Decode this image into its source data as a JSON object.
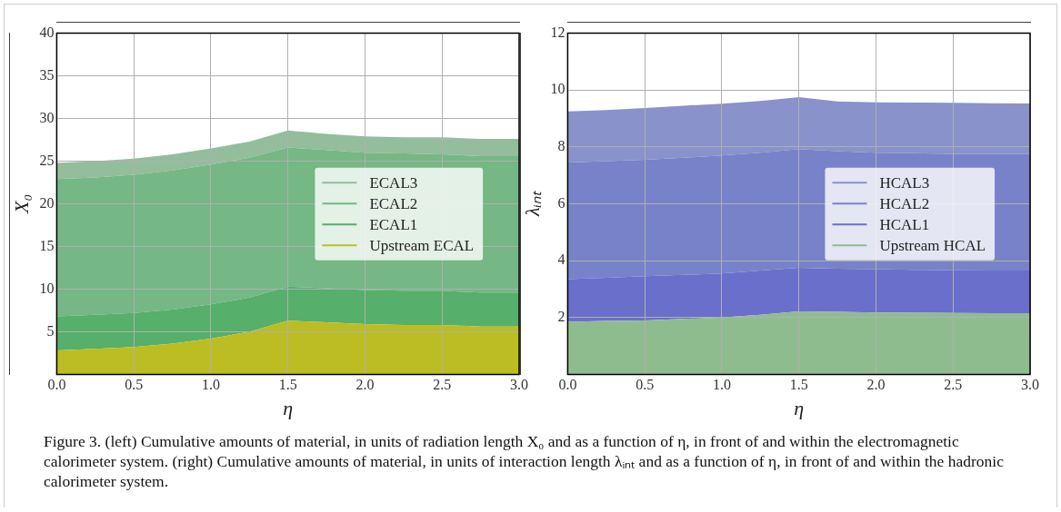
{
  "chart_data": [
    {
      "type": "area",
      "stacked": true,
      "ylabel": "X₀",
      "xlabel": "η",
      "xlim": [
        0,
        3
      ],
      "xticks": [
        {
          "value": 0,
          "label": "0.0"
        },
        {
          "value": 0.5,
          "label": "0.5"
        },
        {
          "value": 1,
          "label": "1.0"
        },
        {
          "value": 1.5,
          "label": "1.5"
        },
        {
          "value": 2,
          "label": "2.0"
        },
        {
          "value": 2.5,
          "label": "2.5"
        },
        {
          "value": 3,
          "label": "3.0"
        }
      ],
      "ylim": [
        0,
        40
      ],
      "yticks": [
        5,
        10,
        15,
        20,
        25,
        30,
        35,
        40
      ],
      "grid": true,
      "legend": "right",
      "marker": "none",
      "x": [
        0,
        0.25,
        0.5,
        0.75,
        1,
        1.25,
        1.5,
        1.75,
        2,
        2.25,
        2.5,
        2.75,
        3
      ],
      "series": [
        {
          "name": "Upstream ECAL",
          "color": "#bcbd22",
          "values": [
            2.8,
            3.0,
            3.2,
            3.6,
            4.2,
            5.0,
            6.3,
            6.1,
            5.9,
            5.8,
            5.8,
            5.6,
            5.6
          ]
        },
        {
          "name": "ECAL1",
          "color": "#56af6a",
          "values": [
            4.0,
            4.0,
            4.0,
            4.0,
            4.0,
            4.0,
            4.0,
            4.0,
            4.0,
            4.0,
            4.0,
            4.0,
            4.0
          ]
        },
        {
          "name": "ECAL2",
          "color": "#75b785",
          "values": [
            16.1,
            16.1,
            16.2,
            16.3,
            16.4,
            16.4,
            16.3,
            16.2,
            16.1,
            16.1,
            16.0,
            16.0,
            16.0
          ]
        },
        {
          "name": "ECAL3",
          "color": "#93bd9b",
          "values": [
            1.9,
            1.9,
            1.9,
            1.9,
            1.9,
            1.9,
            2.0,
            1.9,
            1.9,
            1.9,
            2.0,
            2.0,
            2.0
          ]
        }
      ],
      "annotations": [
        "Figure 3. (left) Cumulative amounts of material, in units of radiation length X₀ and as a function of η, in front of and within the electromagnetic calorimeter system. (right) Cumulative amounts of material, in units of interaction length λᵢₙₜ and as a function of η, in front of and within the hadronic calorimeter system."
      ]
    },
    {
      "type": "area",
      "stacked": true,
      "ylabel": "λᵢₙₜ",
      "xlabel": "η",
      "xlim": [
        0,
        3
      ],
      "xticks": [
        {
          "value": 0,
          "label": "0.0"
        },
        {
          "value": 0.5,
          "label": "0.5"
        },
        {
          "value": 1,
          "label": "1.0"
        },
        {
          "value": 1.5,
          "label": "1.5"
        },
        {
          "value": 2,
          "label": "2.0"
        },
        {
          "value": 2.5,
          "label": "2.5"
        },
        {
          "value": 3,
          "label": "3.0"
        }
      ],
      "ylim": [
        0,
        12
      ],
      "yticks": [
        2,
        4,
        6,
        8,
        10,
        12
      ],
      "grid": true,
      "legend": "right",
      "marker": "none",
      "x": [
        0,
        0.25,
        0.5,
        0.75,
        1,
        1.25,
        1.5,
        1.75,
        2,
        2.25,
        2.5,
        2.75,
        3
      ],
      "series": [
        {
          "name": "Upstream HCAL",
          "color": "#8fbc8f",
          "values": [
            1.85,
            1.88,
            1.9,
            1.95,
            2.0,
            2.1,
            2.22,
            2.2,
            2.18,
            2.17,
            2.16,
            2.15,
            2.15
          ]
        },
        {
          "name": "HCAL1",
          "color": "#6a6fcb",
          "values": [
            1.5,
            1.52,
            1.55,
            1.55,
            1.55,
            1.55,
            1.53,
            1.52,
            1.52,
            1.51,
            1.5,
            1.5,
            1.5
          ]
        },
        {
          "name": "HCAL2",
          "color": "#7882c9",
          "values": [
            4.1,
            4.1,
            4.1,
            4.12,
            4.15,
            4.15,
            4.17,
            4.13,
            4.1,
            4.1,
            4.1,
            4.1,
            4.1
          ]
        },
        {
          "name": "HCAL3",
          "color": "#8992ca",
          "values": [
            1.8,
            1.8,
            1.82,
            1.83,
            1.82,
            1.82,
            1.83,
            1.75,
            1.77,
            1.78,
            1.79,
            1.79,
            1.78
          ]
        }
      ]
    }
  ]
}
